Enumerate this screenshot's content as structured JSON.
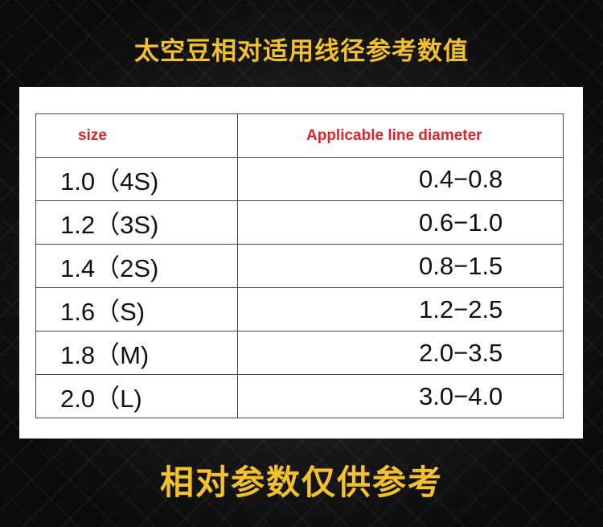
{
  "title": "太空豆相对适用线径参考数值",
  "table": {
    "headers": [
      "size",
      "Applicable line diameter"
    ],
    "rows": [
      [
        "1.0（4S)",
        "0.4−0.8"
      ],
      [
        "1.2（3S)",
        "0.6−1.0"
      ],
      [
        "1.4（2S)",
        "0.8−1.5"
      ],
      [
        "1.6（S)",
        "1.2−2.5"
      ],
      [
        "1.8（M)",
        "2.0−3.5"
      ],
      [
        "2.0（L)",
        "3.0−4.0"
      ]
    ]
  },
  "footer": "相对参数仅供参考",
  "colors": {
    "accent_yellow": "#f3c12e",
    "header_red": "#e0242c"
  }
}
